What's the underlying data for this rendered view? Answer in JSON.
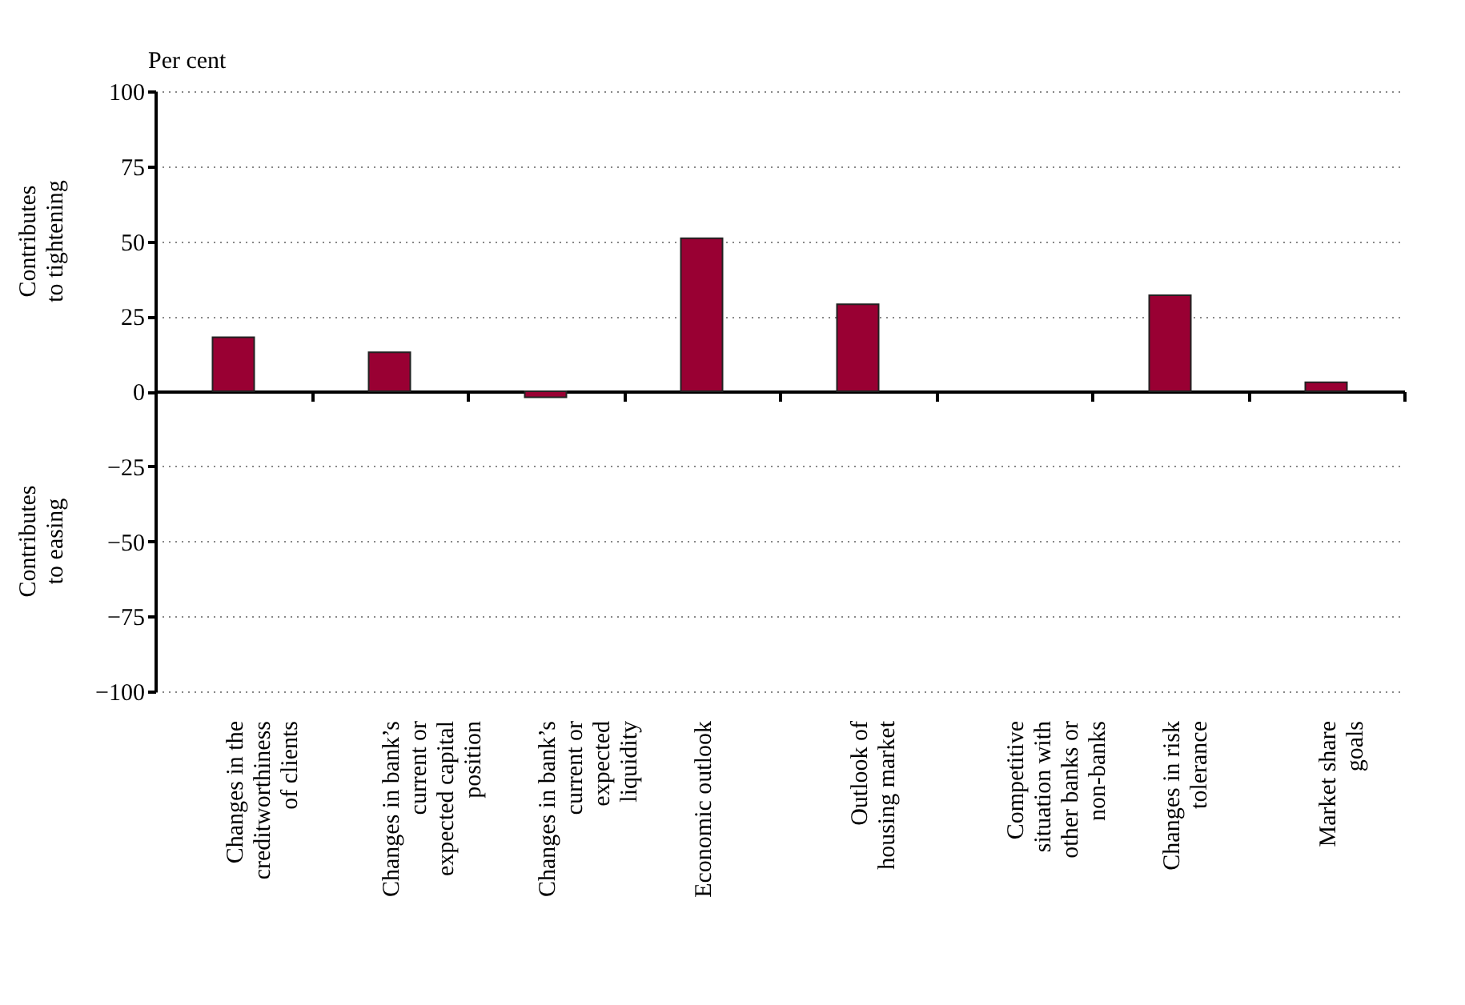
{
  "chart_data": {
    "type": "bar",
    "ylabel": "Per cent",
    "categories": [
      "Changes in the creditworthiness of clients",
      "Changes in bank’s current or expected capital position",
      "Changes in bank’s current or expected liquidity",
      "Economic outlook",
      "Outlook of housing market",
      "Competitive situation with other banks or non-banks",
      "Changes in risk tolerance",
      "Market share goals"
    ],
    "values": [
      18,
      13,
      -2,
      51,
      29,
      0,
      32,
      3
    ],
    "color": "#990033",
    "ylim": [
      -100,
      100
    ],
    "yticks": [
      100,
      75,
      50,
      25,
      0,
      {
        "value": -25,
        "label": "−25"
      },
      {
        "value": -50,
        "label": "−50"
      },
      {
        "value": -75,
        "label": "−75"
      },
      {
        "value": -100,
        "label": "−100"
      }
    ],
    "grid": "y",
    "annotations": [
      "Contributes to tightening",
      "Contributes to easing"
    ]
  }
}
